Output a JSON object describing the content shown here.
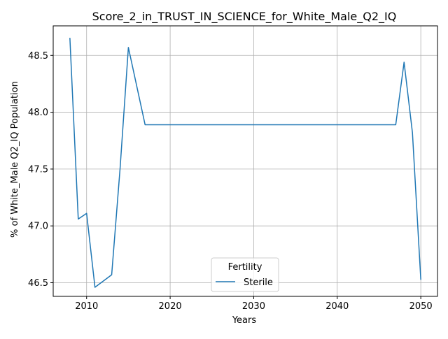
{
  "chart_data": {
    "type": "line",
    "title": "Score_2_in_TRUST_IN_SCIENCE_for_White_Male_Q2_IQ",
    "xlabel": "Years",
    "ylabel": "% of White_Male Q2_IQ Population",
    "xlim": [
      2006,
      2052
    ],
    "ylim": [
      46.38,
      48.76
    ],
    "x_ticks": [
      2010,
      2020,
      2030,
      2040,
      2050
    ],
    "x_tick_labels": [
      "2010",
      "2020",
      "2030",
      "2040",
      "2050"
    ],
    "y_ticks": [
      46.5,
      47.0,
      47.5,
      48.0,
      48.5
    ],
    "y_tick_labels": [
      "46.5",
      "47.0",
      "47.5",
      "48.0",
      "48.5"
    ],
    "grid": true,
    "legend": {
      "title": "Fertility",
      "placement": "lower center"
    },
    "series": [
      {
        "name": "Sterile",
        "color": "#1f77b4",
        "x": [
          2008,
          2009,
          2010,
          2011,
          2013,
          2014,
          2015,
          2017,
          2020,
          2025,
          2030,
          2035,
          2040,
          2045,
          2047,
          2048,
          2049,
          2050
        ],
        "y": [
          48.65,
          47.06,
          47.11,
          46.46,
          46.57,
          47.5,
          48.57,
          47.89,
          47.89,
          47.89,
          47.89,
          47.89,
          47.89,
          47.89,
          47.89,
          48.44,
          47.82,
          46.53
        ]
      }
    ]
  }
}
